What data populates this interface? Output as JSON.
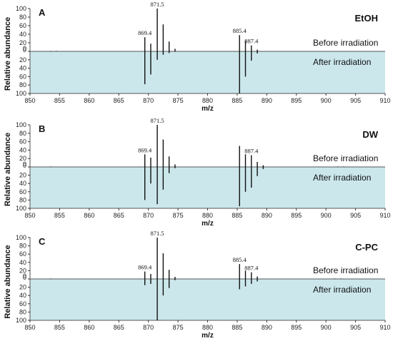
{
  "shared": {
    "x_label": "m/z",
    "y_label": "Relative abundance",
    "upper_region_label": "Before irradiation",
    "lower_region_label": "After irradiation",
    "colors": {
      "after_fill": "#cbe7ec",
      "line": "#111111",
      "axis_line": "#555555"
    }
  },
  "chart_data": [
    {
      "type": "bar",
      "panel": "A",
      "title": "EtOH",
      "xlabel": "m/z",
      "ylabel": "Relative abundance",
      "xlim": [
        850,
        910
      ],
      "xticks": [
        850,
        855,
        860,
        865,
        870,
        875,
        880,
        885,
        890,
        895,
        900,
        905,
        910
      ],
      "ylim_before": [
        0,
        100
      ],
      "ylim_after": [
        0,
        100
      ],
      "yticks": [
        0,
        20,
        40,
        60,
        80,
        100
      ],
      "series": [
        {
          "name": "Before irradiation",
          "x": [
            853.5,
            854.5,
            869.4,
            870.4,
            871.5,
            872.5,
            873.5,
            874.5,
            885.4,
            886.4,
            887.4,
            888.4
          ],
          "values": [
            1,
            1,
            33,
            18,
            100,
            63,
            23,
            6,
            38,
            25,
            14,
            4
          ]
        },
        {
          "name": "After irradiation",
          "x": [
            869.4,
            870.4,
            871.5,
            872.5,
            873.5,
            874.5,
            885.4,
            886.4,
            887.4,
            888.4
          ],
          "values": [
            78,
            55,
            20,
            8,
            4,
            1,
            100,
            60,
            22,
            5
          ]
        }
      ],
      "peak_labels": [
        {
          "x": 869.4,
          "text": "869.4",
          "y": 33
        },
        {
          "x": 871.5,
          "text": "871.5",
          "y": 100
        },
        {
          "x": 885.4,
          "text": "885.4",
          "y": 38
        },
        {
          "x": 887.4,
          "text": "887.4",
          "y": 14
        }
      ]
    },
    {
      "type": "bar",
      "panel": "B",
      "title": "DW",
      "xlabel": "m/z",
      "ylabel": "Relative abundance",
      "xlim": [
        850,
        910
      ],
      "xticks": [
        850,
        855,
        860,
        865,
        870,
        875,
        880,
        885,
        890,
        895,
        900,
        905,
        910
      ],
      "ylim_before": [
        0,
        100
      ],
      "ylim_after": [
        0,
        100
      ],
      "yticks": [
        0,
        20,
        40,
        60,
        80,
        100
      ],
      "series": [
        {
          "name": "Before irradiation",
          "x": [
            853.5,
            869.4,
            870.4,
            871.5,
            872.5,
            873.5,
            874.5,
            885.4,
            886.4,
            887.4,
            888.4,
            889.4,
            902.0,
            903.0
          ],
          "values": [
            1,
            30,
            22,
            100,
            65,
            25,
            6,
            50,
            30,
            28,
            12,
            4,
            1,
            1
          ]
        },
        {
          "name": "After irradiation",
          "x": [
            869.4,
            870.4,
            871.5,
            872.5,
            873.5,
            874.5,
            885.4,
            886.4,
            887.4,
            888.4,
            889.4
          ],
          "values": [
            80,
            40,
            90,
            55,
            15,
            3,
            95,
            60,
            50,
            22,
            5
          ]
        }
      ],
      "peak_labels": [
        {
          "x": 869.4,
          "text": "869.4",
          "y": 30
        },
        {
          "x": 871.5,
          "text": "871.5",
          "y": 100
        },
        {
          "x": 887.4,
          "text": "887.4",
          "y": 28
        }
      ]
    },
    {
      "type": "bar",
      "panel": "C",
      "title": "C-PC",
      "xlabel": "m/z",
      "ylabel": "Relative abundance",
      "xlim": [
        850,
        910
      ],
      "xticks": [
        850,
        855,
        860,
        865,
        870,
        875,
        880,
        885,
        890,
        895,
        900,
        905,
        910
      ],
      "ylim_before": [
        0,
        100
      ],
      "ylim_after": [
        0,
        100
      ],
      "yticks": [
        0,
        20,
        40,
        60,
        80,
        100
      ],
      "series": [
        {
          "name": "Before irradiation",
          "x": [
            853.5,
            869.4,
            870.4,
            871.5,
            872.5,
            873.5,
            874.5,
            885.4,
            886.4,
            887.4,
            888.4,
            901.5,
            902.5
          ],
          "values": [
            1,
            18,
            12,
            100,
            62,
            22,
            5,
            36,
            20,
            16,
            6,
            1,
            1
          ]
        },
        {
          "name": "After irradiation",
          "x": [
            869.4,
            870.4,
            871.5,
            872.5,
            873.5,
            874.5,
            885.4,
            886.4,
            887.4,
            888.4
          ],
          "values": [
            15,
            12,
            100,
            40,
            22,
            3,
            25,
            18,
            12,
            6
          ]
        }
      ],
      "peak_labels": [
        {
          "x": 869.4,
          "text": "869.4",
          "y": 18
        },
        {
          "x": 871.5,
          "text": "871.5",
          "y": 100
        },
        {
          "x": 885.4,
          "text": "885.4",
          "y": 36
        },
        {
          "x": 887.4,
          "text": "887.4",
          "y": 16
        }
      ]
    }
  ]
}
